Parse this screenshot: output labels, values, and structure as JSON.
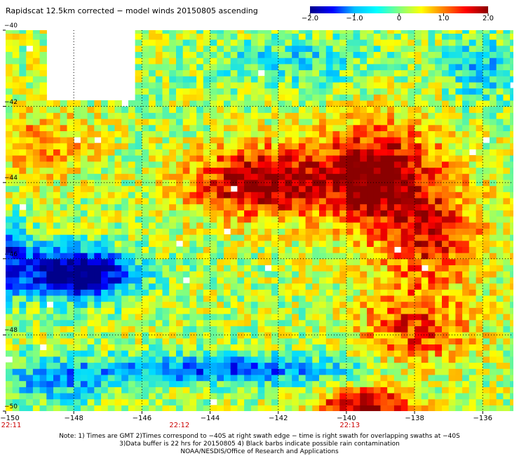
{
  "chart_data": {
    "type": "heatmap",
    "title": "Rapidscat 12.5km corrected − model winds 20150805 ascending",
    "colorbar": {
      "range": [
        -2.0,
        2.0
      ],
      "tick_labels": [
        "−2.0",
        "−1.0",
        "0",
        "1.0",
        "2.0"
      ],
      "tick_values": [
        -2.0,
        -1.0,
        0,
        1.0,
        2.0
      ],
      "colors": [
        "#00008b",
        "#0000ff",
        "#00bfff",
        "#00ffff",
        "#80ff80",
        "#ffff00",
        "#ff8000",
        "#ff0000",
        "#8b0000"
      ]
    },
    "x_tick_labels": [
      "−150",
      "−148",
      "−146",
      "−144",
      "−142",
      "−140",
      "−138",
      "−136"
    ],
    "x_ticks": [
      -150,
      -148,
      -146,
      -144,
      -142,
      -140,
      -138,
      -136
    ],
    "xlim": [
      -150,
      -135.1
    ],
    "y_tick_labels": [
      "−40",
      "−42",
      "−44",
      "−46",
      "−48",
      "−50"
    ],
    "y_ticks": [
      -40,
      -42,
      -44,
      -46,
      -48,
      -50
    ],
    "ylim": [
      -50,
      -40
    ],
    "grid": "dotted lines every 2 degrees",
    "swath_times": [
      {
        "label": "22:11",
        "lon": -150
      },
      {
        "label": "22:12",
        "lon": -144.9
      },
      {
        "label": "22:13",
        "lon": -139.9
      }
    ],
    "features": [
      {
        "region": "strong positive difference (~+1.5 to +2.0)",
        "lon": [
          -144.5,
          -137.5
        ],
        "lat": [
          -45.5,
          -43.0
        ]
      },
      {
        "region": "strong negative difference (~-1.5 to -2.0)",
        "lon": [
          -150,
          -143.5
        ],
        "lat": [
          -47.3,
          -45.5
        ]
      },
      {
        "region": "negative band (~-1.0 to -1.5)",
        "lon": [
          -147.5,
          -139.5
        ],
        "lat": [
          -49.5,
          -48.6
        ]
      },
      {
        "region": "positive patch (~+1.0 to +2.0)",
        "lon": [
          -141,
          -138.5
        ],
        "lat": [
          -50,
          -49.2
        ]
      },
      {
        "region": "no data",
        "lon": [
          -148.9,
          -146.2
        ],
        "lat": [
          -41.8,
          -40
        ]
      }
    ]
  },
  "notes": {
    "line1": "Note: 1) Times are GMT 2)Times correspond to −40S at right swath edge − time is right swath for overlapping swaths at −40S",
    "line2": "3)Data buffer is 22 hrs for 20150805 4) Black barbs indicate possible rain contamination",
    "line3": "NOAA/NESDIS/Office of Research and Applications"
  }
}
